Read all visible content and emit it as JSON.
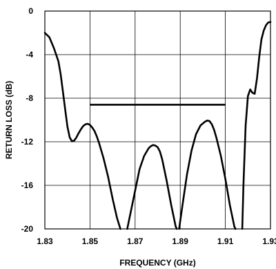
{
  "chart_data": {
    "type": "line",
    "title": "",
    "xlabel": "FREQUENCY (GHz)",
    "ylabel": "RETURN LOSS (dB)",
    "xlim": [
      1.83,
      1.93
    ],
    "ylim": [
      -20,
      0
    ],
    "grid": true,
    "x_ticks": [
      1.83,
      1.85,
      1.87,
      1.89,
      1.91,
      1.93
    ],
    "x_tick_labels": [
      "1.83",
      "1.85",
      "1.87",
      "1.89",
      "1.91",
      "1.93"
    ],
    "y_ticks": [
      0,
      -4,
      -8,
      -12,
      -16,
      -20
    ],
    "y_tick_labels": [
      "0",
      "-4",
      "-8",
      "-12",
      "-16",
      "-20"
    ],
    "series": [
      {
        "x": [
          1.83,
          1.832,
          1.834,
          1.836,
          1.837,
          1.838,
          1.839,
          1.84,
          1.841,
          1.842,
          1.843,
          1.844,
          1.845,
          1.846,
          1.847,
          1.848,
          1.849,
          1.85,
          1.851,
          1.852,
          1.853,
          1.854,
          1.856,
          1.858,
          1.86,
          1.862,
          1.8635
        ],
        "y": [
          -2.0,
          -2.4,
          -3.4,
          -4.6,
          -5.8,
          -7.4,
          -9.0,
          -10.6,
          -11.6,
          -11.95,
          -11.9,
          -11.6,
          -11.2,
          -10.85,
          -10.55,
          -10.4,
          -10.35,
          -10.45,
          -10.7,
          -11.0,
          -11.5,
          -12.1,
          -13.5,
          -15.2,
          -17.2,
          -19.0,
          -20.0
        ]
      },
      {
        "x": [
          1.8665,
          1.868,
          1.87,
          1.872,
          1.874,
          1.876,
          1.877,
          1.878,
          1.879,
          1.88,
          1.881,
          1.882,
          1.884,
          1.886,
          1.888,
          1.8885
        ],
        "y": [
          -20.0,
          -18.5,
          -16.5,
          -14.5,
          -13.3,
          -12.6,
          -12.4,
          -12.3,
          -12.35,
          -12.5,
          -12.9,
          -13.6,
          -15.6,
          -17.8,
          -19.8,
          -20.0
        ]
      },
      {
        "x": [
          1.8895,
          1.891,
          1.893,
          1.895,
          1.897,
          1.899,
          1.901,
          1.902,
          1.903,
          1.904,
          1.905,
          1.906,
          1.908,
          1.91,
          1.912,
          1.914,
          1.9145
        ],
        "y": [
          -20.0,
          -17.8,
          -15.0,
          -12.8,
          -11.3,
          -10.5,
          -10.15,
          -10.05,
          -10.1,
          -10.4,
          -10.9,
          -11.6,
          -13.3,
          -15.4,
          -17.8,
          -19.8,
          -20.0
        ]
      },
      {
        "x": [
          1.9175,
          1.918,
          1.919,
          1.92,
          1.921,
          1.922,
          1.923,
          1.924,
          1.925,
          1.926,
          1.927,
          1.928,
          1.929,
          1.93
        ],
        "y": [
          -20.0,
          -16.0,
          -10.5,
          -7.8,
          -7.2,
          -7.5,
          -7.6,
          -6.2,
          -4.2,
          -2.6,
          -1.8,
          -1.3,
          -1.05,
          -1.0
        ]
      }
    ],
    "markers": [
      {
        "type": "hline",
        "y": -8.6,
        "x_start": 1.85,
        "x_end": 1.91
      }
    ],
    "line_color": "#000000",
    "grid_color": "#000000"
  }
}
